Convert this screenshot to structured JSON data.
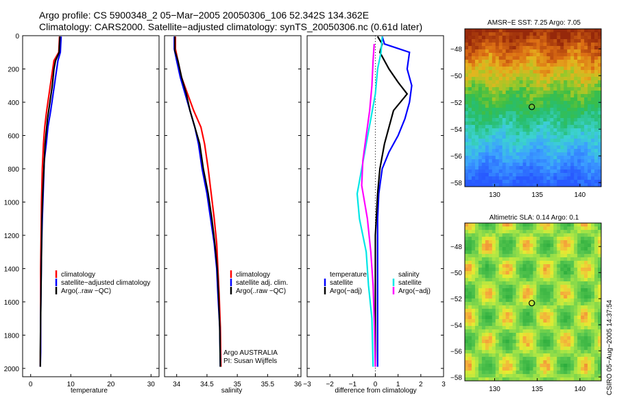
{
  "header": {
    "line1": "Argo profile: CS 5900348_2 05−Mar−2005 20050306_106 52.342S 134.362E",
    "line2": "Climatology: CARS2000. Satellite−adjusted climatology: synTS_20050306.nc (0.61d later)"
  },
  "credit": "CSIRO 05−Aug−2005 14:37:54",
  "colors": {
    "red": "#ff0000",
    "blue": "#0000ff",
    "black": "#000000",
    "cyan": "#00e6e6",
    "magenta": "#ff00ff"
  },
  "chart_data": [
    {
      "type": "line",
      "xlabel": "temperature",
      "ylabel": "",
      "xlim": [
        -2,
        32
      ],
      "ylim": [
        2050,
        0
      ],
      "x_ticks": [
        0,
        10,
        20,
        30
      ],
      "y_ticks": [
        0,
        200,
        400,
        600,
        800,
        1000,
        1200,
        1400,
        1600,
        1800,
        2000
      ],
      "legend": [
        "climatology",
        "satellite−adjusted climatology",
        "Argo(..raw −QC)"
      ],
      "series": [
        {
          "name": "climatology",
          "color": "red",
          "points": [
            [
              7.2,
              5
            ],
            [
              7.1,
              50
            ],
            [
              7.0,
              100
            ],
            [
              5.8,
              150
            ],
            [
              5.2,
              250
            ],
            [
              4.6,
              350
            ],
            [
              4.0,
              450
            ],
            [
              3.5,
              550
            ],
            [
              3.2,
              650
            ],
            [
              2.9,
              800
            ],
            [
              2.7,
              1000
            ],
            [
              2.6,
              1200
            ],
            [
              2.5,
              1400
            ],
            [
              2.5,
              1600
            ],
            [
              2.5,
              1800
            ],
            [
              2.4,
              1990
            ]
          ]
        },
        {
          "name": "satellite−adjusted climatology",
          "color": "blue",
          "points": [
            [
              7.6,
              5
            ],
            [
              7.5,
              50
            ],
            [
              7.4,
              100
            ],
            [
              6.8,
              150
            ],
            [
              6.2,
              250
            ],
            [
              5.6,
              350
            ],
            [
              5.0,
              450
            ],
            [
              4.3,
              550
            ],
            [
              3.9,
              650
            ],
            [
              3.4,
              750
            ],
            [
              3.2,
              900
            ],
            [
              2.9,
              1100
            ],
            [
              2.7,
              1300
            ],
            [
              2.6,
              1500
            ],
            [
              2.5,
              1700
            ],
            [
              2.5,
              1900
            ],
            [
              2.4,
              1990
            ]
          ]
        },
        {
          "name": "Argo(..raw −QC)",
          "color": "black",
          "points": [
            [
              7.3,
              5
            ],
            [
              7.2,
              50
            ],
            [
              7.1,
              100
            ],
            [
              6.2,
              150
            ],
            [
              5.8,
              200
            ],
            [
              5.4,
              300
            ],
            [
              4.8,
              400
            ],
            [
              4.2,
              500
            ],
            [
              3.6,
              650
            ],
            [
              3.3,
              800
            ],
            [
              3.0,
              950
            ],
            [
              2.8,
              1100
            ],
            [
              2.7,
              1300
            ],
            [
              2.6,
              1500
            ],
            [
              2.5,
              1700
            ],
            [
              2.4,
              1900
            ],
            [
              2.4,
              1990
            ]
          ]
        }
      ]
    },
    {
      "type": "line",
      "xlabel": "salinity",
      "xlim": [
        33.8,
        36.05
      ],
      "ylim": [
        2050,
        0
      ],
      "x_ticks": [
        34,
        34.5,
        35,
        35.5,
        36
      ],
      "legend": [
        "climatology",
        "satellite adj. clim.",
        "Argo(..raw −QC)"
      ],
      "annotation": [
        "Argo AUSTRALIA",
        "PI: Susan Wijffels"
      ],
      "series": [
        {
          "name": "climatology",
          "color": "red",
          "points": [
            [
              33.98,
              5
            ],
            [
              33.98,
              80
            ],
            [
              34.02,
              150
            ],
            [
              34.08,
              250
            ],
            [
              34.18,
              350
            ],
            [
              34.28,
              450
            ],
            [
              34.4,
              550
            ],
            [
              34.46,
              650
            ],
            [
              34.52,
              800
            ],
            [
              34.57,
              950
            ],
            [
              34.62,
              1100
            ],
            [
              34.66,
              1250
            ],
            [
              34.68,
              1400
            ],
            [
              34.7,
              1550
            ],
            [
              34.72,
              1750
            ],
            [
              34.73,
              1990
            ]
          ]
        },
        {
          "name": "satellite adj. clim.",
          "color": "blue",
          "points": [
            [
              33.96,
              5
            ],
            [
              33.96,
              80
            ],
            [
              34.0,
              150
            ],
            [
              34.06,
              250
            ],
            [
              34.14,
              350
            ],
            [
              34.22,
              450
            ],
            [
              34.3,
              550
            ],
            [
              34.36,
              650
            ],
            [
              34.42,
              800
            ],
            [
              34.5,
              950
            ],
            [
              34.56,
              1100
            ],
            [
              34.62,
              1250
            ],
            [
              34.66,
              1400
            ],
            [
              34.68,
              1550
            ],
            [
              34.71,
              1750
            ],
            [
              34.72,
              1990
            ]
          ]
        },
        {
          "name": "Argo(..raw −QC)",
          "color": "black",
          "points": [
            [
              33.97,
              5
            ],
            [
              33.97,
              90
            ],
            [
              34.02,
              150
            ],
            [
              34.08,
              250
            ],
            [
              34.16,
              350
            ],
            [
              34.22,
              450
            ],
            [
              34.3,
              550
            ],
            [
              34.38,
              650
            ],
            [
              34.44,
              800
            ],
            [
              34.52,
              950
            ],
            [
              34.58,
              1100
            ],
            [
              34.63,
              1250
            ],
            [
              34.67,
              1400
            ],
            [
              34.69,
              1550
            ],
            [
              34.71,
              1750
            ],
            [
              34.72,
              1990
            ]
          ]
        }
      ]
    },
    {
      "type": "line",
      "xlabel": "difference from climatology",
      "xlim": [
        -3,
        3
      ],
      "ylim": [
        2050,
        0
      ],
      "x_ticks": [
        -3,
        -2,
        -1,
        0,
        1,
        2,
        3
      ],
      "legend_left_title": "temperature",
      "legend_right_title": "salinity",
      "legend_left": [
        "satellite",
        "Argo(−adj)"
      ],
      "legend_right": [
        "satellite",
        "Argo(−adj)"
      ],
      "series": [
        {
          "name": "temperature satellite",
          "color": "blue",
          "points": [
            [
              0.3,
              5
            ],
            [
              0.4,
              50
            ],
            [
              1.5,
              100
            ],
            [
              1.4,
              200
            ],
            [
              1.6,
              300
            ],
            [
              1.5,
              400
            ],
            [
              1.3,
              500
            ],
            [
              1.0,
              600
            ],
            [
              0.6,
              700
            ],
            [
              0.3,
              800
            ],
            [
              0.15,
              950
            ],
            [
              0.1,
              1100
            ],
            [
              0.1,
              1300
            ],
            [
              0.1,
              1500
            ],
            [
              0.1,
              1700
            ],
            [
              0.1,
              1990
            ]
          ]
        },
        {
          "name": "temperature Argo(−adj)",
          "color": "black",
          "points": [
            [
              0.1,
              5
            ],
            [
              0.3,
              50
            ],
            [
              0.2,
              100
            ],
            [
              0.6,
              200
            ],
            [
              1.0,
              280
            ],
            [
              1.4,
              350
            ],
            [
              0.8,
              450
            ],
            [
              0.6,
              550
            ],
            [
              0.4,
              650
            ],
            [
              0.2,
              800
            ],
            [
              0.1,
              950
            ],
            [
              0.0,
              1200
            ],
            [
              0.0,
              1500
            ],
            [
              0.0,
              1800
            ],
            [
              0.0,
              1990
            ]
          ]
        },
        {
          "name": "salinity satellite",
          "color": "cyan",
          "points": [
            [
              0.3,
              5
            ],
            [
              0.25,
              100
            ],
            [
              0.1,
              200
            ],
            [
              0.0,
              350
            ],
            [
              -0.2,
              500
            ],
            [
              -0.4,
              650
            ],
            [
              -0.6,
              800
            ],
            [
              -0.8,
              950
            ],
            [
              -0.7,
              1100
            ],
            [
              -0.4,
              1300
            ],
            [
              -0.3,
              1500
            ],
            [
              -0.15,
              1700
            ],
            [
              -0.1,
              1990
            ]
          ]
        },
        {
          "name": "salinity Argo(−adj)",
          "color": "magenta",
          "points": [
            [
              -0.05,
              50
            ],
            [
              -0.1,
              150
            ],
            [
              -0.15,
              300
            ],
            [
              -0.25,
              450
            ],
            [
              -0.4,
              600
            ],
            [
              -0.55,
              750
            ],
            [
              -0.6,
              900
            ],
            [
              -0.35,
              1100
            ],
            [
              -0.2,
              1300
            ],
            [
              -0.1,
              1500
            ],
            [
              -0.05,
              1700
            ],
            [
              0.0,
              1990
            ]
          ]
        }
      ]
    }
  ],
  "maps": [
    {
      "title": "AMSR−E SST: 7.25 Argo: 7.05",
      "lon_ticks": [
        130,
        135,
        140
      ],
      "lat_ticks": [
        -48,
        -50,
        -52,
        -54,
        -56,
        -58
      ],
      "lon_range": [
        126.5,
        142.5
      ],
      "lat_range": [
        -46.5,
        -58.3
      ],
      "argo_position": [
        134.36,
        -52.34
      ],
      "palette": "sst"
    },
    {
      "title": "Altimetric SLA: 0.14 Argo: 0.1",
      "lon_ticks": [
        130,
        135,
        140
      ],
      "lat_ticks": [
        -48,
        -50,
        -52,
        -54,
        -56,
        -58
      ],
      "lon_range": [
        126.5,
        142.5
      ],
      "lat_range": [
        -46.2,
        -58.3
      ],
      "argo_position": [
        134.36,
        -52.34
      ],
      "palette": "sla"
    }
  ]
}
